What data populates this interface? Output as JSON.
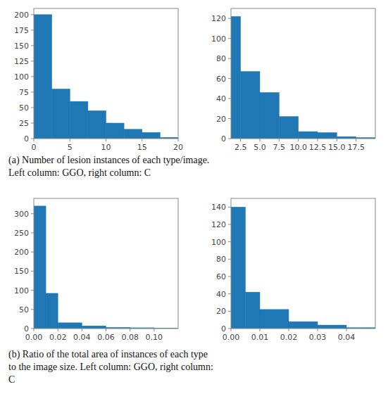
{
  "chart_data": [
    {
      "type": "histogram",
      "color": "#1f77b4",
      "bins": [
        0,
        2.5,
        5,
        7.5,
        10,
        12.5,
        15,
        17.5,
        20
      ],
      "values": [
        200,
        80,
        60,
        45,
        25,
        15,
        10,
        2
      ],
      "xlim": [
        0,
        20
      ],
      "ylim": [
        0,
        210
      ],
      "xticks": [
        0,
        5,
        10,
        15,
        20
      ],
      "yticks": [
        0,
        25,
        50,
        75,
        100,
        125,
        150,
        175,
        200
      ],
      "annotations": [
        "(a) Number of lesion instances of each type/image.\nLeft column: GGO, right column: C"
      ]
    },
    {
      "type": "histogram",
      "color": "#1f77b4",
      "bins": [
        1.25,
        2.5,
        5.0,
        7.5,
        10.0,
        12.5,
        15.0,
        17.5,
        20.0
      ],
      "values": [
        122,
        67,
        46,
        22,
        7,
        6,
        2,
        1
      ],
      "xlim": [
        1.25,
        20.0
      ],
      "ylim": [
        0,
        130
      ],
      "xticks": [
        2.5,
        {
          "value": 5.0,
          "label": "5.0"
        },
        7.5,
        {
          "value": 10.0,
          "label": "10.0"
        },
        12.5,
        {
          "value": 15.0,
          "label": "15.0"
        },
        17.5
      ],
      "yticks": [
        0,
        20,
        40,
        60,
        80,
        100,
        120
      ]
    },
    {
      "type": "histogram",
      "color": "#1f77b4",
      "bins": [
        0.0,
        0.01,
        0.02,
        0.04,
        0.06,
        0.08,
        0.1,
        0.12
      ],
      "values": [
        320,
        92,
        15,
        7,
        3,
        2,
        1
      ],
      "xlim": [
        0,
        0.12
      ],
      "ylim": [
        0,
        340
      ],
      "xticks": [
        {
          "value": 0.0,
          "label": "0.00"
        },
        {
          "value": 0.02,
          "label": "0.02"
        },
        {
          "value": 0.04,
          "label": "0.04"
        },
        {
          "value": 0.06,
          "label": "0.06"
        },
        {
          "value": 0.08,
          "label": "0.08"
        },
        {
          "value": 0.1,
          "label": "0.10"
        }
      ],
      "yticks": [
        0,
        50,
        100,
        150,
        200,
        250,
        300
      ],
      "annotations": [
        "(b) Ratio of the total area of instances of each type\nto the image size. Left column: GGO, right column:\nC"
      ]
    },
    {
      "type": "histogram",
      "color": "#1f77b4",
      "bins": [
        0.0,
        0.005,
        0.01,
        0.02,
        0.03,
        0.04,
        0.05
      ],
      "values": [
        140,
        42,
        22,
        8,
        4,
        1
      ],
      "xlim": [
        0,
        0.05
      ],
      "ylim": [
        0,
        150
      ],
      "xticks": [
        {
          "value": 0.0,
          "label": "0.00"
        },
        {
          "value": 0.01,
          "label": "0.01"
        },
        {
          "value": 0.02,
          "label": "0.02"
        },
        {
          "value": 0.03,
          "label": "0.03"
        },
        {
          "value": 0.04,
          "label": "0.04"
        }
      ],
      "yticks": [
        0,
        20,
        40,
        60,
        80,
        100,
        120,
        140
      ]
    }
  ]
}
